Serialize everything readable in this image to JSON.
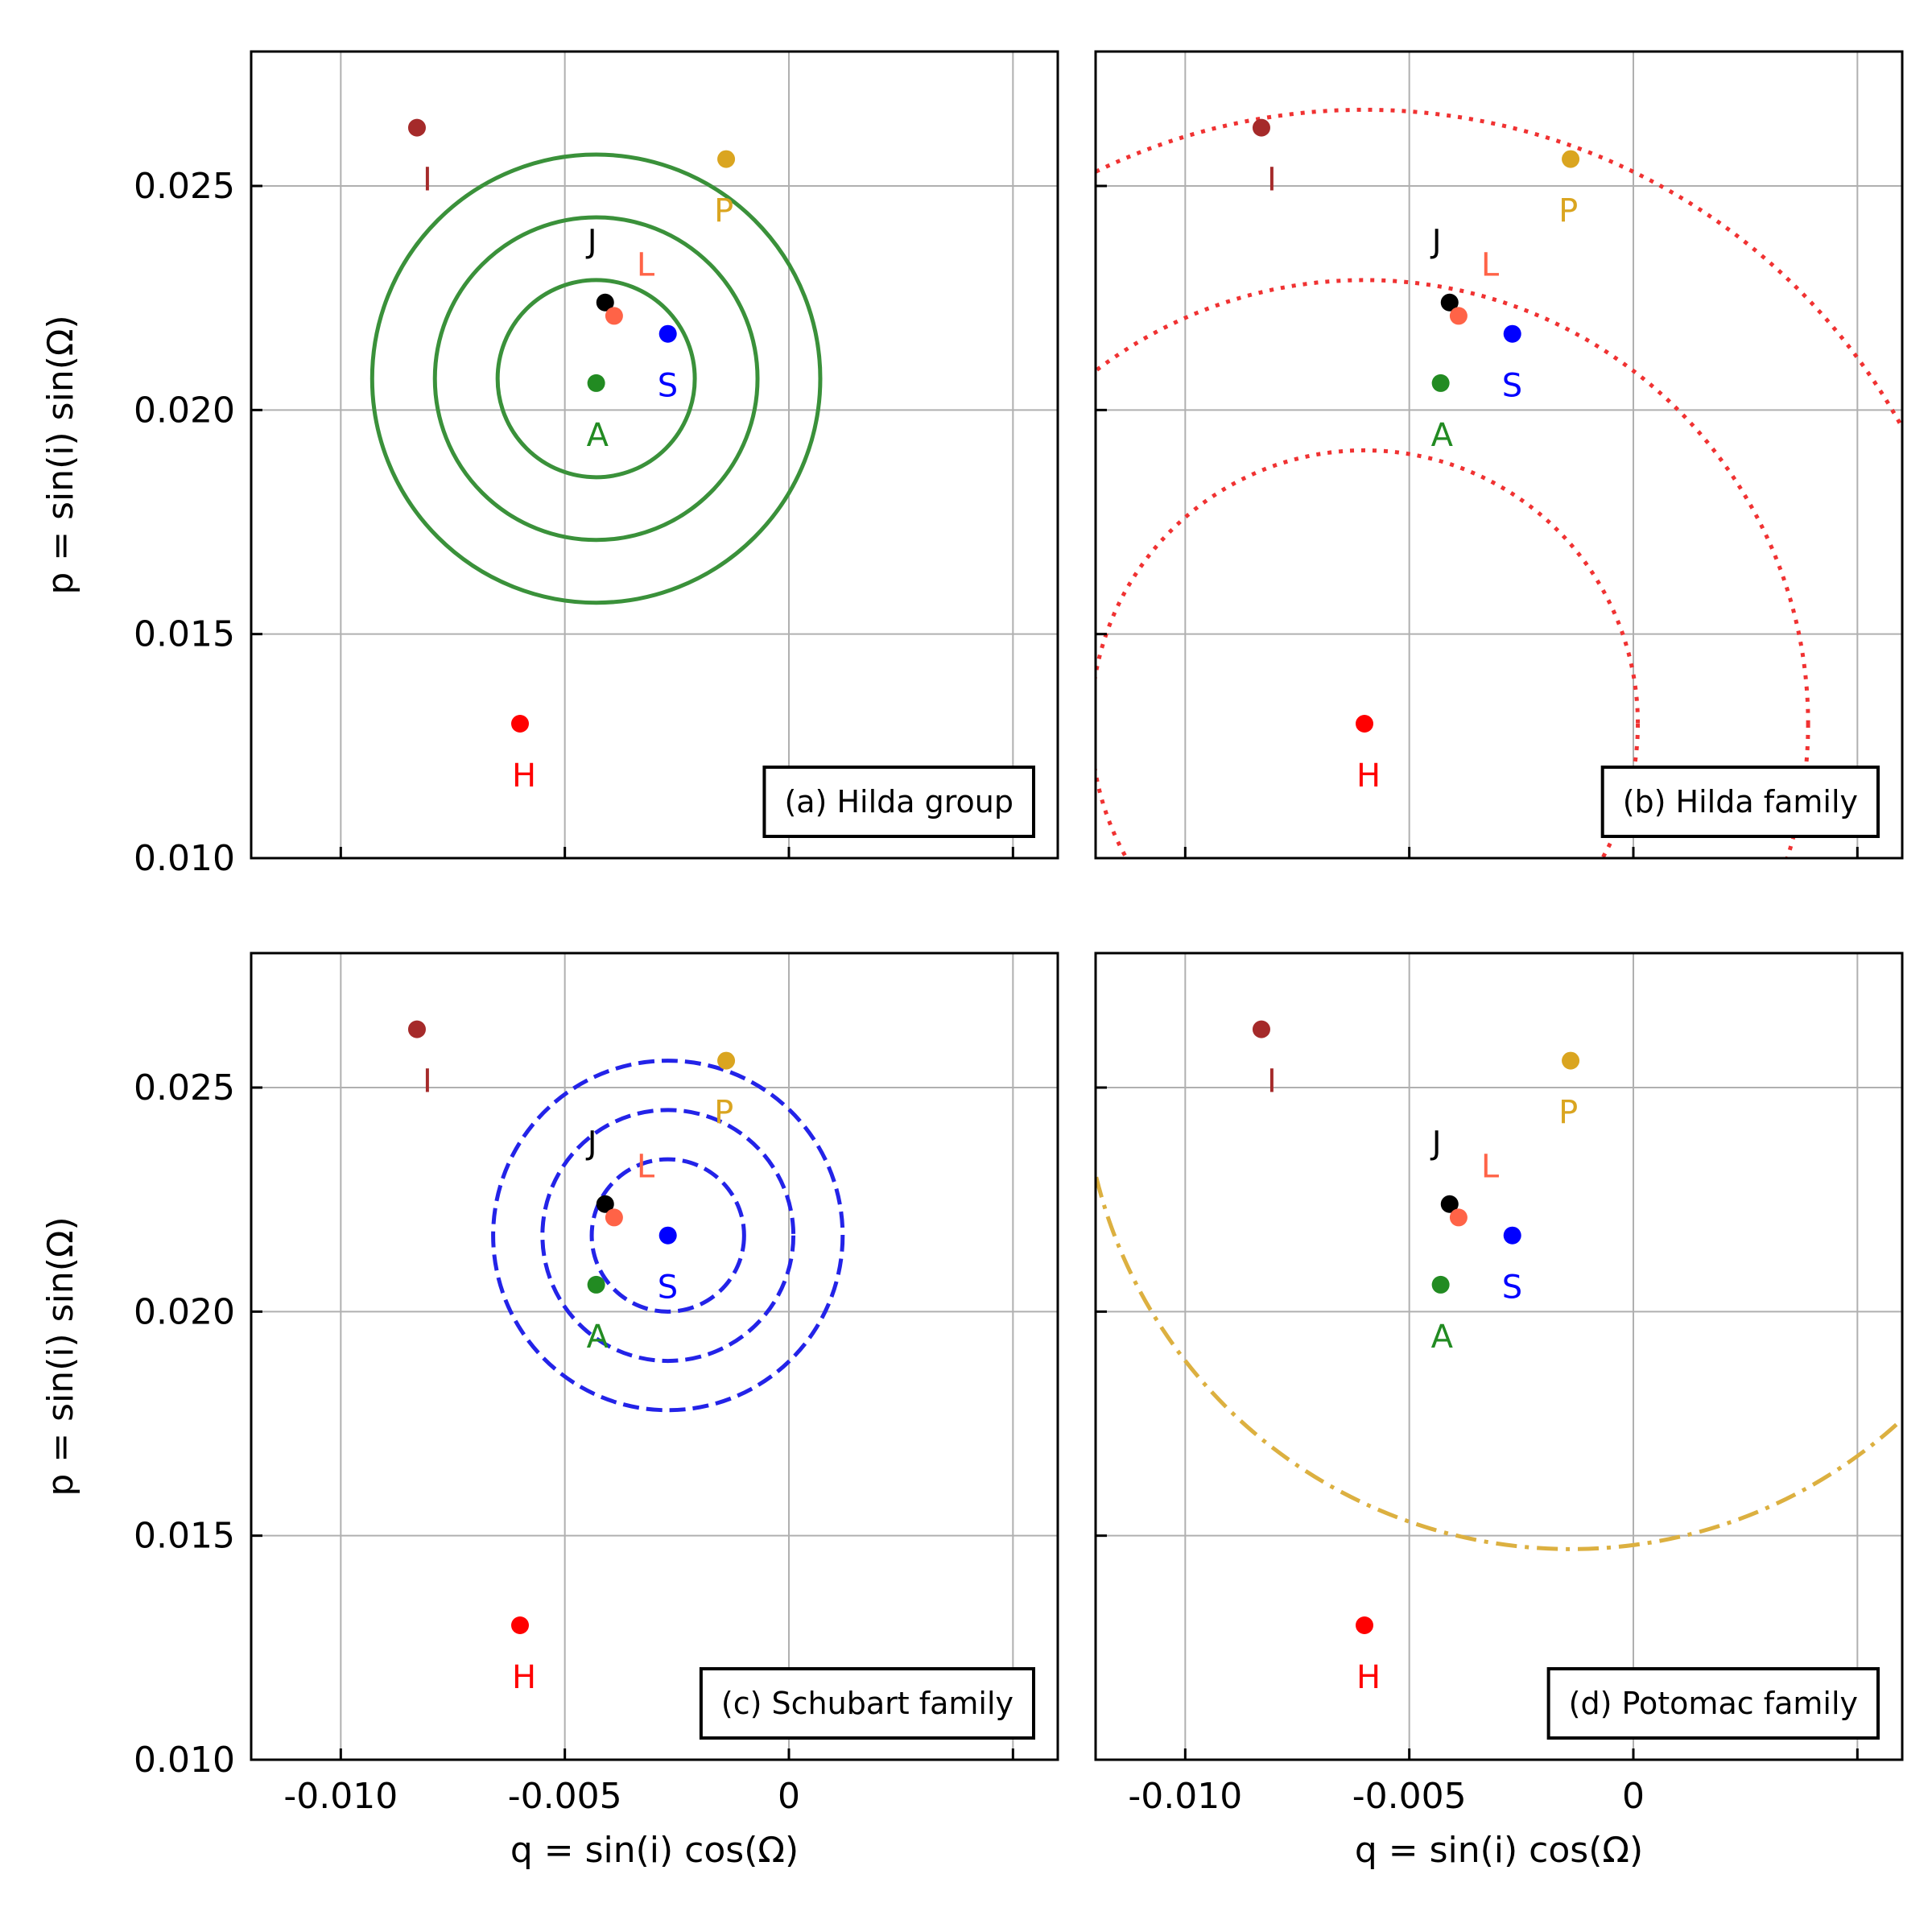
{
  "chart_data": {
    "type": "scatter",
    "xlim": [
      -0.012,
      0.006
    ],
    "ylim": [
      0.01,
      0.028
    ],
    "grid": true,
    "xticks": [
      -0.01,
      -0.005,
      0,
      0.005
    ],
    "yticks": [
      0.01,
      0.015,
      0.02,
      0.025
    ],
    "xtick_labels": [
      "-0.010",
      "-0.005",
      "0",
      ""
    ],
    "ytick_labels": [
      "0.010",
      "0.015",
      "0.020",
      "0.025"
    ],
    "xlabel": "q = sin(i) cos(Ω)",
    "ylabel": "p = sin(i) sin(Ω)",
    "points": [
      {
        "label": "I",
        "x": -0.0083,
        "y": 0.0263,
        "color": "#a52a2a"
      },
      {
        "label": "P",
        "x": -0.0014,
        "y": 0.0256,
        "color": "#daa520"
      },
      {
        "label": "J",
        "x": -0.0041,
        "y": 0.0224,
        "color": "#000000"
      },
      {
        "label": "L",
        "x": -0.0039,
        "y": 0.0221,
        "color": "#ff6347"
      },
      {
        "label": "S",
        "x": -0.0027,
        "y": 0.0217,
        "color": "#0000ff"
      },
      {
        "label": "A",
        "x": -0.0043,
        "y": 0.0206,
        "color": "#228b22"
      },
      {
        "label": "H",
        "x": -0.006,
        "y": 0.013,
        "color": "#ff0000"
      }
    ],
    "panels": [
      {
        "legend": "(a) Hilda group",
        "legend_loc": "lower-right",
        "circles": {
          "center": [
            -0.0043,
            0.0207
          ],
          "radii": [
            0.0022,
            0.0036,
            0.005
          ],
          "color": "#3a913a",
          "style": "solid"
        }
      },
      {
        "legend": "(b) Hilda family",
        "legend_loc": "lower-right",
        "circles": {
          "center": [
            -0.006,
            0.013
          ],
          "radii": [
            0.0061,
            0.0099,
            0.0137
          ],
          "color": "#f03232",
          "style": "dotted"
        }
      },
      {
        "legend": "(c) Schubart family",
        "legend_loc": "lower-right",
        "circles": {
          "center": [
            -0.0027,
            0.0217
          ],
          "radii": [
            0.0017,
            0.0028,
            0.0039
          ],
          "color": "#2323e8",
          "style": "dashed"
        }
      },
      {
        "legend": "(d) Potomac family",
        "legend_loc": "lower-right",
        "circles": {
          "center": [
            -0.0014,
            0.0256
          ],
          "radii": [
            0.0109
          ],
          "color": "#dcb040",
          "style": "dashdot"
        }
      }
    ]
  }
}
